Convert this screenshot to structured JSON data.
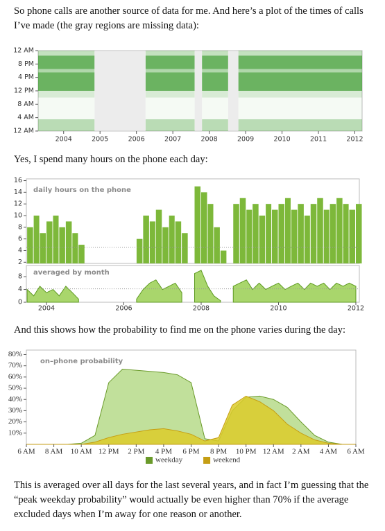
{
  "paragraphs": [
    "So phone calls are another source of data for me. And here’s a plot of the times of calls I’ve made (the gray regions are missing data):",
    "Yes, I spend many hours on the phone each day:",
    "And this shows how the probability to find me on the phone varies during the day:",
    "This is averaged over all days for the last several years, and in fact I’m guessing that the “peak weekday probability” would actually be even higher than 70% if the average excluded days when I’m away for one reason or another."
  ],
  "chart_data": [
    {
      "type": "raster",
      "color": "#3a9a2c",
      "missing_color": "#ececec",
      "xlim": [
        2003.3,
        2012.2
      ],
      "xticks": [
        2004,
        2005,
        2006,
        2007,
        2008,
        2009,
        2010,
        2011,
        2012
      ],
      "ylim": [
        0,
        24
      ],
      "yticks": [
        {
          "value": 0,
          "label": "12 AM"
        },
        {
          "value": 4,
          "label": "4 AM"
        },
        {
          "value": 8,
          "label": "8 AM"
        },
        {
          "value": 12,
          "label": "12 PM"
        },
        {
          "value": 16,
          "label": "4 PM"
        },
        {
          "value": 20,
          "label": "8 PM"
        },
        {
          "value": 24,
          "label": "12 AM"
        }
      ],
      "missing": [
        [
          2004.85,
          2006.25
        ],
        [
          2007.6,
          2007.8
        ],
        [
          2008.52,
          2008.8
        ]
      ],
      "bands": [
        {
          "start": 0,
          "end": 3.5,
          "density": 0.35
        },
        {
          "start": 3.5,
          "end": 10,
          "density": 0.05
        },
        {
          "start": 10,
          "end": 12,
          "density": 0.2
        },
        {
          "start": 12,
          "end": 17.5,
          "density": 0.75
        },
        {
          "start": 17.5,
          "end": 18.5,
          "density": 0.4
        },
        {
          "start": 18.5,
          "end": 22.5,
          "density": 0.75
        },
        {
          "start": 22.5,
          "end": 24,
          "density": 0.3
        }
      ]
    },
    {
      "type": "bar",
      "label": "daily hours on the phone",
      "color": "#7db83a",
      "mean": 4.6,
      "xlim": [
        2003.48,
        2012.09
      ],
      "ylim": [
        1.8,
        16.3
      ],
      "yticks": [
        2,
        4,
        6,
        8,
        10,
        12,
        14,
        16
      ],
      "x": [
        2003.5,
        2003.67,
        2003.83,
        2004,
        2004.17,
        2004.33,
        2004.5,
        2004.67,
        2004.83,
        2005,
        2005.17,
        2005.33,
        2005.5,
        2005.67,
        2005.83,
        2006,
        2006.17,
        2006.33,
        2006.5,
        2006.67,
        2006.83,
        2007,
        2007.17,
        2007.33,
        2007.5,
        2007.67,
        2007.83,
        2008,
        2008.17,
        2008.33,
        2008.5,
        2008.67,
        2008.83,
        2009,
        2009.17,
        2009.33,
        2009.5,
        2009.67,
        2009.83,
        2010,
        2010.17,
        2010.33,
        2010.5,
        2010.67,
        2010.83,
        2011,
        2011.17,
        2011.33,
        2011.5,
        2011.67,
        2011.83,
        2012
      ],
      "values": [
        8,
        10,
        7,
        9,
        10,
        8,
        9,
        7,
        5,
        null,
        null,
        null,
        null,
        null,
        null,
        null,
        null,
        6,
        10,
        9,
        11,
        8,
        10,
        9,
        7,
        null,
        15,
        14,
        12,
        8,
        4,
        null,
        12,
        13,
        11,
        12,
        10,
        12,
        11,
        12,
        13,
        11,
        12,
        10,
        12,
        13,
        11,
        12,
        13,
        12,
        11,
        12
      ]
    },
    {
      "type": "area",
      "label": "averaged by month",
      "color": "#a9d66c",
      "line_color": "#5e9a22",
      "mean": 4.2,
      "xlim": [
        2003.48,
        2012.09
      ],
      "xticks": [
        2004,
        2006,
        2008,
        2010,
        2012
      ],
      "ylim": [
        0,
        11.5
      ],
      "yticks": [
        0,
        4,
        8
      ],
      "x": [
        2003.5,
        2003.67,
        2003.83,
        2004,
        2004.17,
        2004.33,
        2004.5,
        2004.67,
        2004.83,
        2005,
        2005.17,
        2005.33,
        2005.5,
        2005.67,
        2005.83,
        2006,
        2006.17,
        2006.33,
        2006.5,
        2006.67,
        2006.83,
        2007,
        2007.17,
        2007.33,
        2007.5,
        2007.67,
        2007.83,
        2008,
        2008.17,
        2008.33,
        2008.5,
        2008.67,
        2008.83,
        2009,
        2009.17,
        2009.33,
        2009.5,
        2009.67,
        2009.83,
        2010,
        2010.17,
        2010.33,
        2010.5,
        2010.67,
        2010.83,
        2011,
        2011.17,
        2011.33,
        2011.5,
        2011.67,
        2011.83,
        2012
      ],
      "values": [
        4,
        2,
        5,
        3,
        4,
        2,
        5,
        3,
        1,
        null,
        null,
        null,
        null,
        null,
        null,
        null,
        null,
        1,
        4,
        6,
        7,
        4,
        5,
        6,
        3,
        null,
        9,
        10,
        5,
        2,
        0.5,
        null,
        5,
        6,
        7,
        4,
        6,
        4,
        5,
        6,
        4,
        5,
        6,
        4,
        6,
        5,
        6,
        4,
        6,
        5,
        6,
        5
      ]
    },
    {
      "type": "area",
      "label": "on–phone probability",
      "xlim": [
        6,
        30
      ],
      "xticks": [
        {
          "value": 6,
          "label": "6 AM"
        },
        {
          "value": 8,
          "label": "8 AM"
        },
        {
          "value": 10,
          "label": "10 AM"
        },
        {
          "value": 12,
          "label": "12 PM"
        },
        {
          "value": 14,
          "label": "2 PM"
        },
        {
          "value": 16,
          "label": "4 PM"
        },
        {
          "value": 18,
          "label": "6 PM"
        },
        {
          "value": 20,
          "label": "8 PM"
        },
        {
          "value": 22,
          "label": "10 PM"
        },
        {
          "value": 24,
          "label": "12 AM"
        },
        {
          "value": 26,
          "label": "2 AM"
        },
        {
          "value": 28,
          "label": "4 AM"
        },
        {
          "value": 30,
          "label": "6 AM"
        }
      ],
      "ylim": [
        0,
        84
      ],
      "yticks": [
        {
          "value": 10,
          "label": "10%"
        },
        {
          "value": 20,
          "label": "20%"
        },
        {
          "value": 30,
          "label": "30%"
        },
        {
          "value": 40,
          "label": "40%"
        },
        {
          "value": 50,
          "label": "50%"
        },
        {
          "value": 60,
          "label": "60%"
        },
        {
          "value": 70,
          "label": "70%"
        },
        {
          "value": 80,
          "label": "80%"
        }
      ],
      "x": [
        6,
        7,
        8,
        9,
        10,
        11,
        12,
        13,
        14,
        15,
        16,
        17,
        18,
        19,
        20,
        21,
        22,
        23,
        24,
        25,
        26,
        27,
        28,
        29,
        30
      ],
      "series": [
        {
          "name": "weekday",
          "color": "#b6db8a",
          "line_color": "#6a9a2a",
          "values": [
            0,
            0,
            0,
            0,
            1,
            8,
            55,
            67,
            66,
            65,
            64,
            62,
            55,
            5,
            3,
            30,
            42,
            43,
            40,
            33,
            20,
            8,
            2,
            0,
            0
          ]
        },
        {
          "name": "weekend",
          "color": "#dccb2a",
          "line_color": "#c59e14",
          "values": [
            0,
            0,
            0,
            0,
            0,
            2,
            6,
            9,
            11,
            13,
            14,
            12,
            9,
            3,
            6,
            35,
            43,
            38,
            30,
            18,
            10,
            4,
            1,
            0,
            0
          ]
        }
      ]
    }
  ]
}
